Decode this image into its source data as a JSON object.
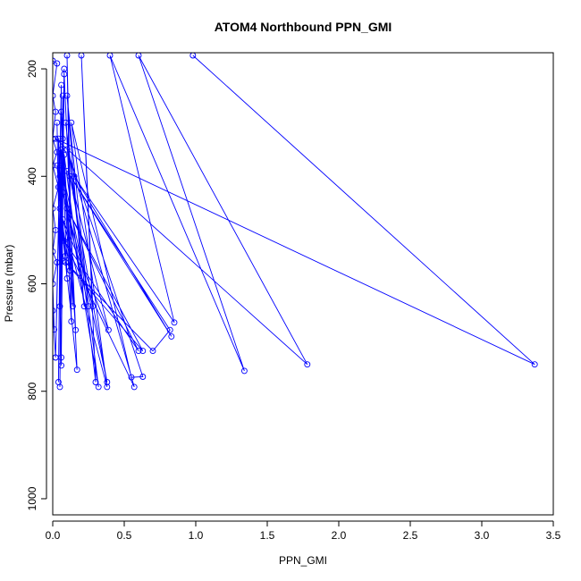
{
  "chart_data": {
    "type": "line",
    "title": "ATOM4 Northbound PPN_GMI",
    "xlabel": "PPN_GMI",
    "ylabel": "Pressure (mbar)",
    "xlim": [
      0,
      3.5
    ],
    "ylim": [
      1030,
      170
    ],
    "y_reversed": true,
    "grid": false,
    "legend": "none",
    "marker": "open-circle",
    "colors": {
      "series": "#0000ff",
      "axes": "#000000",
      "background": "#ffffff"
    },
    "x_ticks": [
      {
        "value": 0,
        "label": "0.0"
      },
      {
        "value": 0.5,
        "label": "0.5"
      },
      {
        "value": 1.0,
        "label": "1.0"
      },
      {
        "value": 1.5,
        "label": "1.5"
      },
      {
        "value": 2.0,
        "label": "2.0"
      },
      {
        "value": 2.5,
        "label": "2.5"
      },
      {
        "value": 3.0,
        "label": "3.0"
      },
      {
        "value": 3.5,
        "label": "3.5"
      }
    ],
    "y_ticks": [
      {
        "value": 200,
        "label": "200"
      },
      {
        "value": 400,
        "label": "400"
      },
      {
        "value": 600,
        "label": "600"
      },
      {
        "value": 800,
        "label": "800"
      },
      {
        "value": 1000,
        "label": "1000"
      }
    ],
    "series": [
      {
        "points": [
          [
            0.0,
            185
          ],
          [
            0.03,
            190
          ],
          [
            0.0,
            250
          ],
          [
            0.02,
            280
          ],
          [
            0.0,
            330
          ],
          [
            0.03,
            355
          ],
          [
            0.0,
            380
          ],
          [
            0.04,
            420
          ],
          [
            0.0,
            460
          ],
          [
            0.02,
            500
          ],
          [
            0.0,
            540
          ],
          [
            0.03,
            560
          ],
          [
            0.0,
            600
          ],
          [
            0.01,
            685
          ],
          [
            0.0,
            650
          ],
          [
            0.02,
            737
          ],
          [
            0.05,
            400
          ],
          [
            0.02,
            737
          ],
          [
            0.06,
            230
          ],
          [
            0.04,
            783
          ],
          [
            0.06,
            350
          ],
          [
            0.05,
            792
          ],
          [
            0.07,
            250
          ],
          [
            0.06,
            752
          ],
          [
            0.03,
            300
          ],
          [
            0.06,
            737
          ],
          [
            0.08,
            200
          ],
          [
            0.05,
            642
          ],
          [
            0.04,
            330
          ],
          [
            0.07,
            558
          ],
          [
            0.05,
            420
          ],
          [
            0.09,
            548
          ],
          [
            0.03,
            380
          ],
          [
            0.1,
            590
          ],
          [
            0.06,
            280
          ],
          [
            0.13,
            670
          ],
          [
            0.1,
            175
          ],
          [
            0.14,
            642
          ],
          [
            0.07,
            330
          ],
          [
            0.16,
            686
          ],
          [
            0.08,
            210
          ],
          [
            0.17,
            760
          ],
          [
            0.05,
            460
          ],
          [
            0.12,
            575
          ],
          [
            0.08,
            360
          ],
          [
            0.22,
            642
          ],
          [
            0.1,
            250
          ],
          [
            0.25,
            642
          ],
          [
            0.07,
            430
          ],
          [
            0.28,
            642
          ],
          [
            0.2,
            175
          ],
          [
            0.3,
            783
          ],
          [
            0.09,
            300
          ],
          [
            0.32,
            792
          ],
          [
            0.06,
            380
          ],
          [
            0.38,
            783
          ],
          [
            0.12,
            400
          ],
          [
            0.39,
            686
          ],
          [
            0.07,
            480
          ],
          [
            0.38,
            792
          ],
          [
            0.13,
            300
          ],
          [
            0.55,
            774
          ],
          [
            0.63,
            773
          ],
          [
            0.1,
            350
          ],
          [
            0.57,
            792
          ],
          [
            0.08,
            520
          ],
          [
            0.6,
            725
          ],
          [
            0.1,
            460
          ],
          [
            0.63,
            725
          ],
          [
            0.09,
            560
          ],
          [
            0.7,
            725
          ],
          [
            0.82,
            686
          ],
          [
            0.1,
            390
          ],
          [
            0.83,
            698
          ],
          [
            0.15,
            400
          ],
          [
            0.85,
            672
          ],
          [
            0.4,
            175
          ],
          [
            1.34,
            762
          ],
          [
            0.6,
            175
          ],
          [
            1.78,
            750
          ],
          [
            0.02,
            330
          ],
          [
            3.37,
            750
          ],
          [
            0.98,
            175
          ]
        ]
      }
    ]
  }
}
